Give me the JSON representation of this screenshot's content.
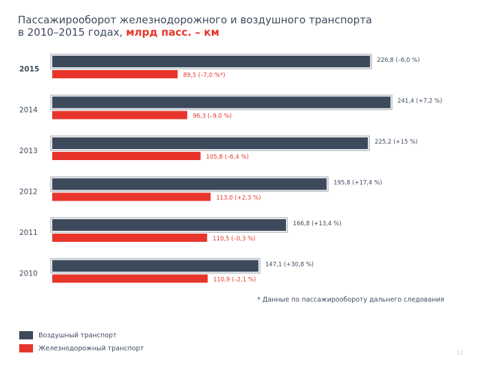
{
  "title": {
    "line1": "Пассажирооборот железнодорожного и воздушного транспорта",
    "line2_prefix": "в 2010–2015 годах,",
    "line2_unit": "млрд пасс. – км"
  },
  "note": "* Данные по пассажирообороту дальнего следования",
  "page_number": "12",
  "colors": {
    "air": "#3d4a5c",
    "rail": "#e8352b",
    "frame": "#b8bec6"
  },
  "chart_data": {
    "type": "bar",
    "orientation": "horizontal",
    "title": "Пассажирооборот железнодорожного и воздушного транспорта в 2010–2015 годах, млрд пасс. – км",
    "categories": [
      "2015",
      "2014",
      "2013",
      "2012",
      "2011",
      "2010"
    ],
    "xlim": [
      0,
      250
    ],
    "grid": false,
    "legend_position": "bottom-left",
    "series": [
      {
        "name": "Воздушный транспорт",
        "key": "air",
        "values": [
          226.8,
          241.4,
          225.2,
          195.8,
          166.8,
          147.1
        ],
        "labels": [
          "226,8 (–6,0 %)",
          "241,4 (+7,2 %)",
          "225,2 (+15 %)",
          "195,8 (+17,4 %)",
          "166,8 (+13,4 %)",
          "147,1 (+30,8 %)"
        ]
      },
      {
        "name": "Железнодорожный транспорт",
        "key": "rail",
        "values": [
          89.5,
          96.3,
          105.8,
          113.0,
          110.5,
          110.9
        ],
        "labels": [
          "89,5 (–7,0 %*)",
          "96,3 (–9,0 %)",
          "105,8 (–6,4 %)",
          "113,0 (+2,3 %)",
          "110,5 (–0,3 %)",
          "110,9 (–2,1 %)"
        ]
      }
    ]
  }
}
